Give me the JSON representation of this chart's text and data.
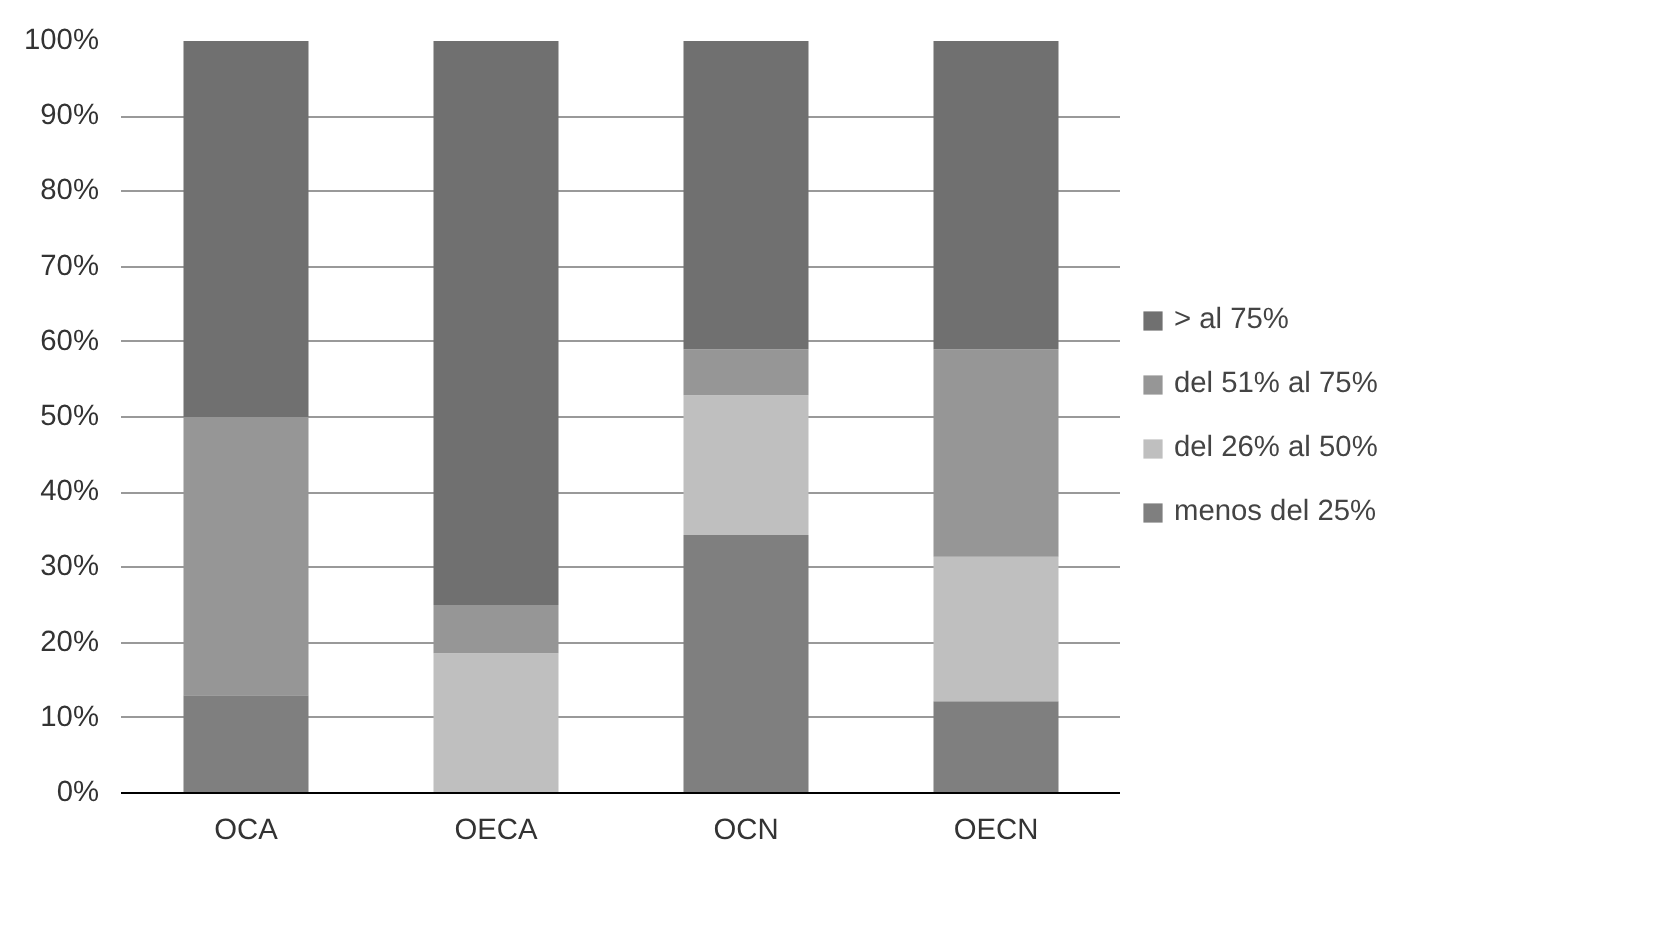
{
  "chart_data": {
    "type": "bar",
    "stacked": true,
    "categories": [
      "OCA",
      "OECA",
      "OCN",
      "OECN"
    ],
    "series": [
      {
        "name": "menos del 25%",
        "color": "#7f7f7f",
        "values": [
          13,
          0,
          34.3,
          12.2
        ]
      },
      {
        "name": "del 26% al 50%",
        "color": "#bfbfbf",
        "values": [
          0,
          18.6,
          18.6,
          19.2
        ]
      },
      {
        "name": "del 51% al 75%",
        "color": "#969696",
        "values": [
          37,
          6.4,
          6.1,
          27.6
        ]
      },
      {
        "name": "> al 75%",
        "color": "#707070",
        "values": [
          50,
          75,
          41,
          41
        ]
      }
    ],
    "ylim": [
      0,
      100
    ],
    "yticks": [
      {
        "value": 0,
        "label": "0%"
      },
      {
        "value": 10,
        "label": "10%"
      },
      {
        "value": 20,
        "label": "20%"
      },
      {
        "value": 30,
        "label": "30%"
      },
      {
        "value": 40,
        "label": "40%"
      },
      {
        "value": 50,
        "label": "50%"
      },
      {
        "value": 60,
        "label": "60%"
      },
      {
        "value": 70,
        "label": "70%"
      },
      {
        "value": 80,
        "label": "80%"
      },
      {
        "value": 90,
        "label": "90%"
      },
      {
        "value": 100,
        "label": "100%"
      }
    ],
    "grid": "y",
    "legend": "right"
  }
}
